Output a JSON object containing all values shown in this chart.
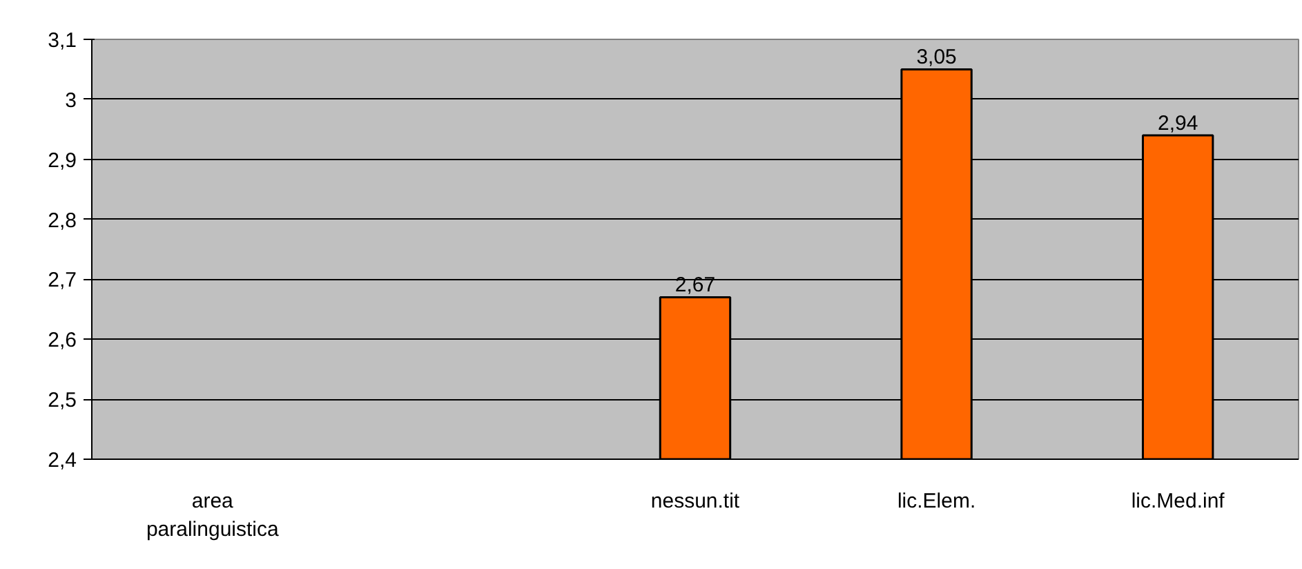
{
  "chart_data": {
    "type": "bar",
    "categories": [
      "area paralinguistica",
      null,
      "nessun.tit",
      "lic.Elem.",
      "lic.Med.inf"
    ],
    "values": [
      null,
      null,
      2.67,
      3.05,
      2.94
    ],
    "value_labels": [
      null,
      null,
      "2,67",
      "3,05",
      "2,94"
    ],
    "color": "#ff6600",
    "ylim": [
      2.4,
      3.1
    ],
    "yticks": [
      {
        "value": 2.4,
        "label": "2,4"
      },
      {
        "value": 2.5,
        "label": "2,5"
      },
      {
        "value": 2.6,
        "label": "2,6"
      },
      {
        "value": 2.7,
        "label": "2,7"
      },
      {
        "value": 2.8,
        "label": "2,8"
      },
      {
        "value": 2.9,
        "label": "2,9"
      },
      {
        "value": 3,
        "label": "3"
      },
      {
        "value": 3.1,
        "label": "3,1"
      }
    ],
    "grid": "y"
  }
}
